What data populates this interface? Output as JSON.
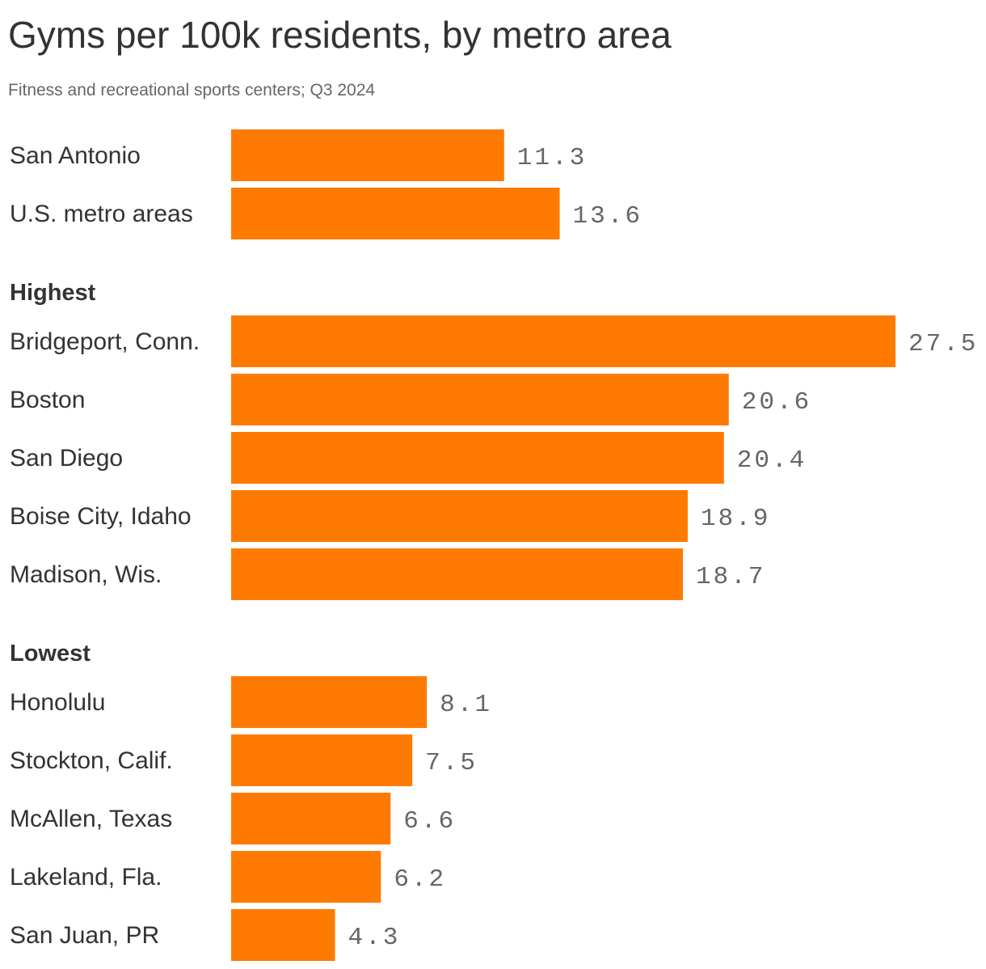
{
  "chart_data": {
    "type": "bar",
    "orientation": "horizontal",
    "title": "Gyms per 100k residents, by metro area",
    "subtitle": "Fitness and recreational sports centers; Q3 2024",
    "bar_color": "#ff7a00",
    "groups": [
      {
        "label": "",
        "rows": [
          {
            "category": "San Antonio",
            "value": 11.3,
            "value_label": "11.3"
          },
          {
            "category": "U.S. metro areas",
            "value": 13.6,
            "value_label": "13.6"
          }
        ]
      },
      {
        "label": "Highest",
        "rows": [
          {
            "category": "Bridgeport, Conn.",
            "value": 27.5,
            "value_label": "27.5"
          },
          {
            "category": "Boston",
            "value": 20.6,
            "value_label": "20.6"
          },
          {
            "category": "San Diego",
            "value": 20.4,
            "value_label": "20.4"
          },
          {
            "category": "Boise City, Idaho",
            "value": 18.9,
            "value_label": "18.9"
          },
          {
            "category": "Madison, Wis.",
            "value": 18.7,
            "value_label": "18.7"
          }
        ]
      },
      {
        "label": "Lowest",
        "rows": [
          {
            "category": "Honolulu",
            "value": 8.1,
            "value_label": "8.1"
          },
          {
            "category": "Stockton, Calif.",
            "value": 7.5,
            "value_label": "7.5"
          },
          {
            "category": "McAllen, Texas",
            "value": 6.6,
            "value_label": "6.6"
          },
          {
            "category": "Lakeland, Fla.",
            "value": 6.2,
            "value_label": "6.2"
          },
          {
            "category": "San Juan, PR",
            "value": 4.3,
            "value_label": "4.3"
          }
        ]
      }
    ],
    "xlim": [
      0,
      27.5
    ],
    "grid": false,
    "legend": "none"
  }
}
